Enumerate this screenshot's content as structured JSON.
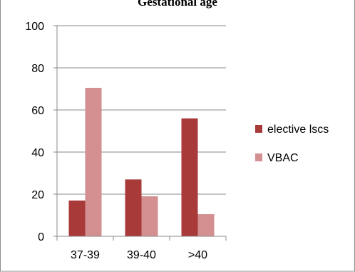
{
  "chart_data": {
    "type": "bar",
    "title": "Gestational age",
    "categories": [
      "37-39",
      "39-40",
      ">40"
    ],
    "series": [
      {
        "name": "elective lscs",
        "values": [
          17,
          27,
          56
        ],
        "color": "#a93a3a"
      },
      {
        "name": "VBAC",
        "values": [
          70.5,
          19,
          10.5
        ],
        "color": "#d48f91"
      }
    ],
    "ylim": [
      0,
      100
    ],
    "yticks": [
      0,
      20,
      40,
      60,
      80,
      100
    ],
    "grid": "horizontal",
    "legend": "right"
  }
}
